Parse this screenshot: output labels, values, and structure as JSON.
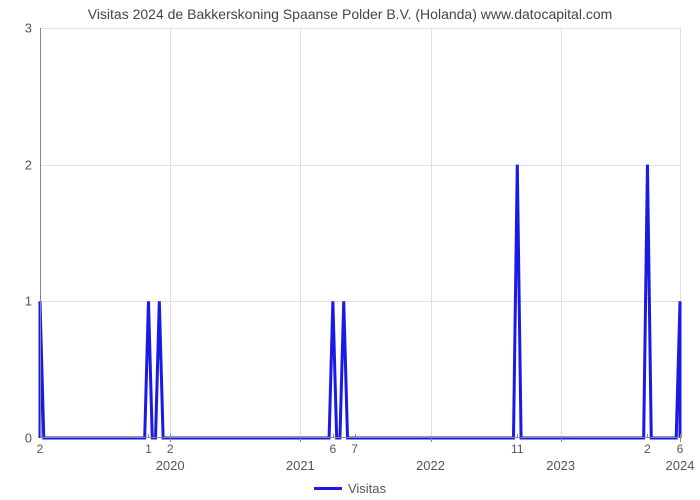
{
  "chart": {
    "type": "line",
    "title": "Visitas 2024 de Bakkerskoning Spaanse Polder B.V. (Holanda) www.datocapital.com",
    "title_fontsize": 14,
    "title_color": "#444444",
    "background_color": "#ffffff",
    "grid_color": "#e0e0e0",
    "axis_color": "#888888",
    "tick_label_color": "#555555",
    "line_color": "#1a1ae6",
    "line_width": 3,
    "ylim": [
      0,
      3
    ],
    "yticks": [
      0,
      1,
      2,
      3
    ],
    "x_n_points": 60,
    "x_year_ticks": [
      {
        "label": "2020",
        "pos": 12
      },
      {
        "label": "2021",
        "pos": 24
      },
      {
        "label": "2022",
        "pos": 36
      },
      {
        "label": "2023",
        "pos": 48
      },
      {
        "label": "2024",
        "pos": 59
      }
    ],
    "x_value_ticks": [
      {
        "label": "2",
        "pos": 0
      },
      {
        "label": "1",
        "pos": 10
      },
      {
        "label": "2",
        "pos": 12
      },
      {
        "label": "6",
        "pos": 27
      },
      {
        "label": "7",
        "pos": 29
      },
      {
        "label": "11",
        "pos": 44
      },
      {
        "label": "2",
        "pos": 56
      },
      {
        "label": "6",
        "pos": 59
      }
    ],
    "y_values": [
      1,
      0,
      0,
      0,
      0,
      0,
      0,
      0,
      0,
      0,
      1,
      1,
      0,
      0,
      0,
      0,
      0,
      0,
      0,
      0,
      0,
      0,
      0,
      0,
      0,
      0,
      0,
      1,
      1,
      0,
      0,
      0,
      0,
      0,
      0,
      0,
      0,
      0,
      0,
      0,
      0,
      0,
      0,
      0,
      2,
      0,
      0,
      0,
      0,
      0,
      0,
      0,
      0,
      0,
      0,
      0,
      2,
      0,
      0,
      1
    ],
    "legend": {
      "label": "Visitas",
      "color": "#1a1ae6"
    }
  }
}
